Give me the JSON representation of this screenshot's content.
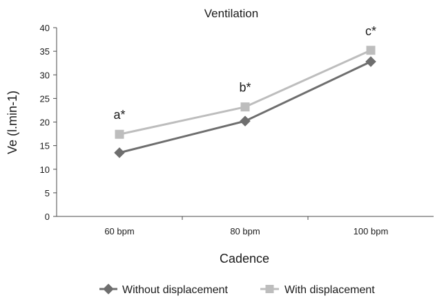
{
  "chart_data": {
    "type": "line",
    "title": "Ventilation",
    "xlabel": "Cadence",
    "ylabel": "Ve (l.min-1)",
    "categories": [
      "60 bpm",
      "80 bpm",
      "100 bpm"
    ],
    "ylim": [
      0,
      40
    ],
    "yticks": [
      0,
      5,
      10,
      15,
      20,
      25,
      30,
      35,
      40
    ],
    "grid": false,
    "legend_position": "bottom",
    "series": [
      {
        "name": "Without displacement",
        "values": [
          13.5,
          20.2,
          32.8
        ],
        "color": "#6e6e6e",
        "marker": "diamond"
      },
      {
        "name": "With displacement",
        "values": [
          17.4,
          23.2,
          35.2
        ],
        "color": "#bdbdbd",
        "marker": "square"
      }
    ],
    "annotations": [
      {
        "category": "60 bpm",
        "text": "a*"
      },
      {
        "category": "80 bpm",
        "text": "b*"
      },
      {
        "category": "100 bpm",
        "text": "c*"
      }
    ]
  }
}
